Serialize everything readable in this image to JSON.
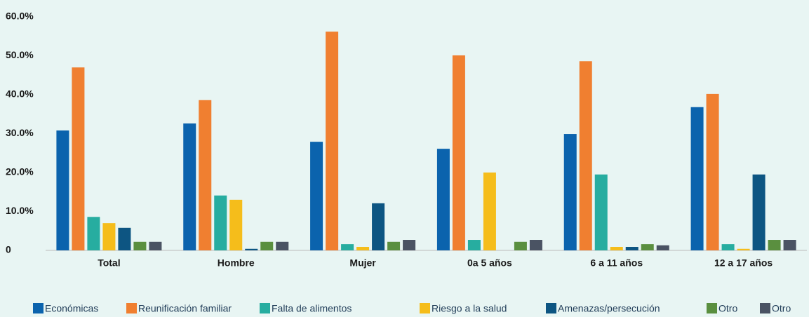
{
  "chart_data": {
    "type": "bar",
    "categories": [
      "Total",
      "Hombre",
      "Mujer",
      "0a 5 años",
      "6 a 11 años",
      "12 a 17 años"
    ],
    "series": [
      {
        "name": "Económicas",
        "color": "#0b63ad",
        "values": [
          30.8,
          32.6,
          27.9,
          26.1,
          29.9,
          36.8
        ]
      },
      {
        "name": "Reunificación familiar",
        "color": "#f07f30",
        "values": [
          47.0,
          38.6,
          56.2,
          50.1,
          48.6,
          40.2
        ]
      },
      {
        "name": "Falta de alimentos",
        "color": "#27ada0",
        "values": [
          8.6,
          14.1,
          1.6,
          2.7,
          19.5,
          1.6
        ]
      },
      {
        "name": "Riesgo a la salud",
        "color": "#f5bd1b",
        "values": [
          7.0,
          13.0,
          0.9,
          20.0,
          0.9,
          0.4
        ]
      },
      {
        "name": "Amenazas/persecución",
        "color": "#0d5582",
        "values": [
          5.8,
          0.4,
          12.1,
          0,
          0.9,
          19.5
        ]
      },
      {
        "name": "Otro",
        "color": "#5a8f3f",
        "values": [
          2.2,
          2.2,
          2.2,
          2.2,
          1.6,
          2.7
        ]
      },
      {
        "name": "Otro",
        "color": "#4a5363",
        "values": [
          2.2,
          2.2,
          2.7,
          2.7,
          1.3,
          2.7
        ]
      }
    ],
    "ylim": [
      0,
      60
    ],
    "yticks": [
      0,
      {
        "value": 10,
        "label": "10.0%"
      },
      {
        "value": 20,
        "label": "20.0%"
      },
      {
        "value": 30,
        "label": "30.0%"
      },
      {
        "value": 40,
        "label": "40.0%"
      },
      {
        "value": 50,
        "label": "50.0%"
      },
      {
        "value": 60,
        "label": "60.0%"
      }
    ],
    "grid": false
  }
}
